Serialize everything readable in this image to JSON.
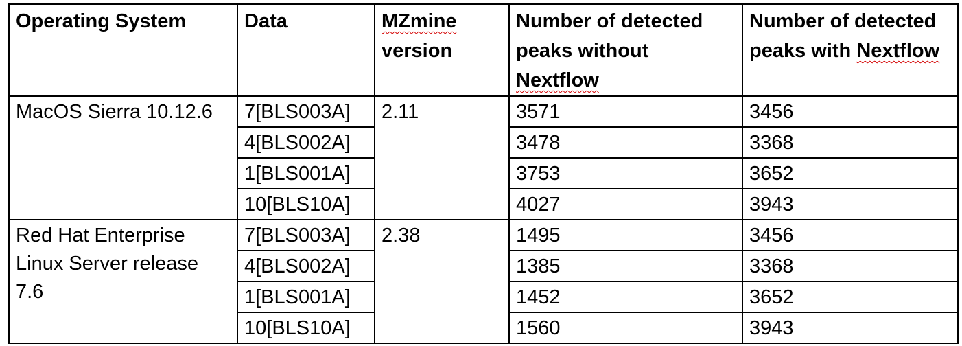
{
  "table": {
    "headers": {
      "os": "Operating System",
      "data": "Data",
      "mzmine": "MZmine",
      "mzmine_suffix": "version",
      "without_prefix": "Number of detected peaks without",
      "without_flag": "Nextflow",
      "with_prefix": "Number of detected peaks with",
      "with_flag": "Nextflow"
    },
    "groups": [
      {
        "os": "MacOS Sierra 10.12.6",
        "version": "2.11",
        "rows": [
          {
            "data": "7[BLS003A]",
            "without": "3571",
            "with": "3456"
          },
          {
            "data": "4[BLS002A]",
            "without": "3478",
            "with": "3368"
          },
          {
            "data": "1[BLS001A]",
            "without": "3753",
            "with": "3652"
          },
          {
            "data": "10[BLS10A]",
            "without": "4027",
            "with": "3943"
          }
        ]
      },
      {
        "os": "Red Hat Enterprise Linux Server release 7.6",
        "version": "2.38",
        "rows": [
          {
            "data": "7[BLS003A]",
            "without": "1495",
            "with": "3456"
          },
          {
            "data": "4[BLS002A]",
            "without": "1385",
            "with": "3368"
          },
          {
            "data": "1[BLS001A]",
            "without": "1452",
            "with": "3652"
          },
          {
            "data": "10[BLS10A]",
            "without": "1560",
            "with": "3943"
          }
        ]
      }
    ]
  }
}
